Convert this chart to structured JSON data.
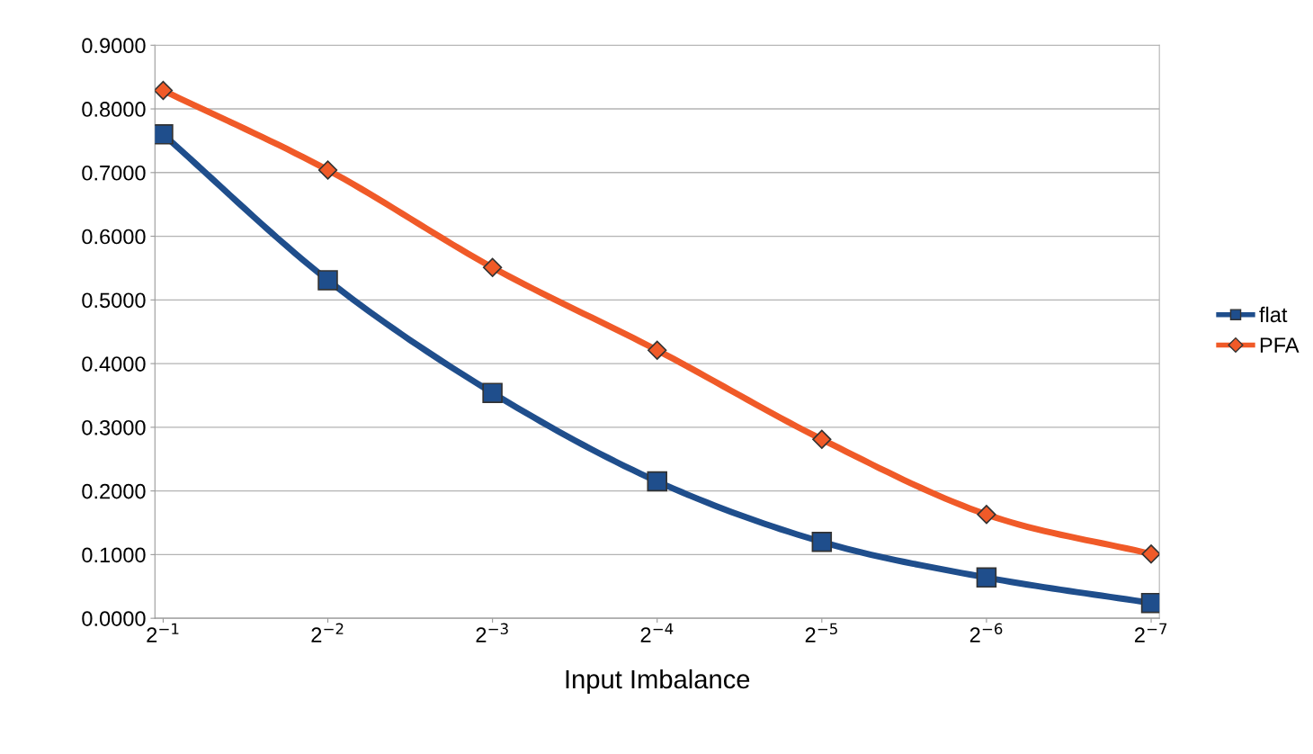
{
  "chart_data": {
    "type": "line",
    "xlabel": "Input Imbalance",
    "categories": [
      "2$^{−1}$",
      "2$^{−2}$",
      "2$^{−3}$",
      "2$^{−4}$",
      "2$^{−5}$",
      "2$^{−6}$",
      "2$^{−7}$"
    ],
    "series": [
      {
        "name": "flat",
        "color": "#1f4e8c",
        "marker": "square",
        "values": [
          0.76,
          0.531,
          0.354,
          0.215,
          0.12,
          0.064,
          0.024
        ]
      },
      {
        "name": "PFA",
        "color": "#f05a28",
        "marker": "diamond",
        "values": [
          0.829,
          0.704,
          0.551,
          0.421,
          0.281,
          0.163,
          0.101
        ]
      }
    ],
    "ylim": [
      0,
      0.9
    ],
    "yticks": [
      {
        "value": 0,
        "label": "0.0000"
      },
      {
        "value": 0.1,
        "label": "0.1000"
      },
      {
        "value": 0.2,
        "label": "0.2000"
      },
      {
        "value": 0.3,
        "label": "0.3000"
      },
      {
        "value": 0.4,
        "label": "0.4000"
      },
      {
        "value": 0.5,
        "label": "0.5000"
      },
      {
        "value": 0.6,
        "label": "0.6000"
      },
      {
        "value": 0.7,
        "label": "0.7000"
      },
      {
        "value": 0.8,
        "label": "0.8000"
      },
      {
        "value": 0.9,
        "label": "0.9000"
      }
    ],
    "grid": "y",
    "legend": "right"
  }
}
